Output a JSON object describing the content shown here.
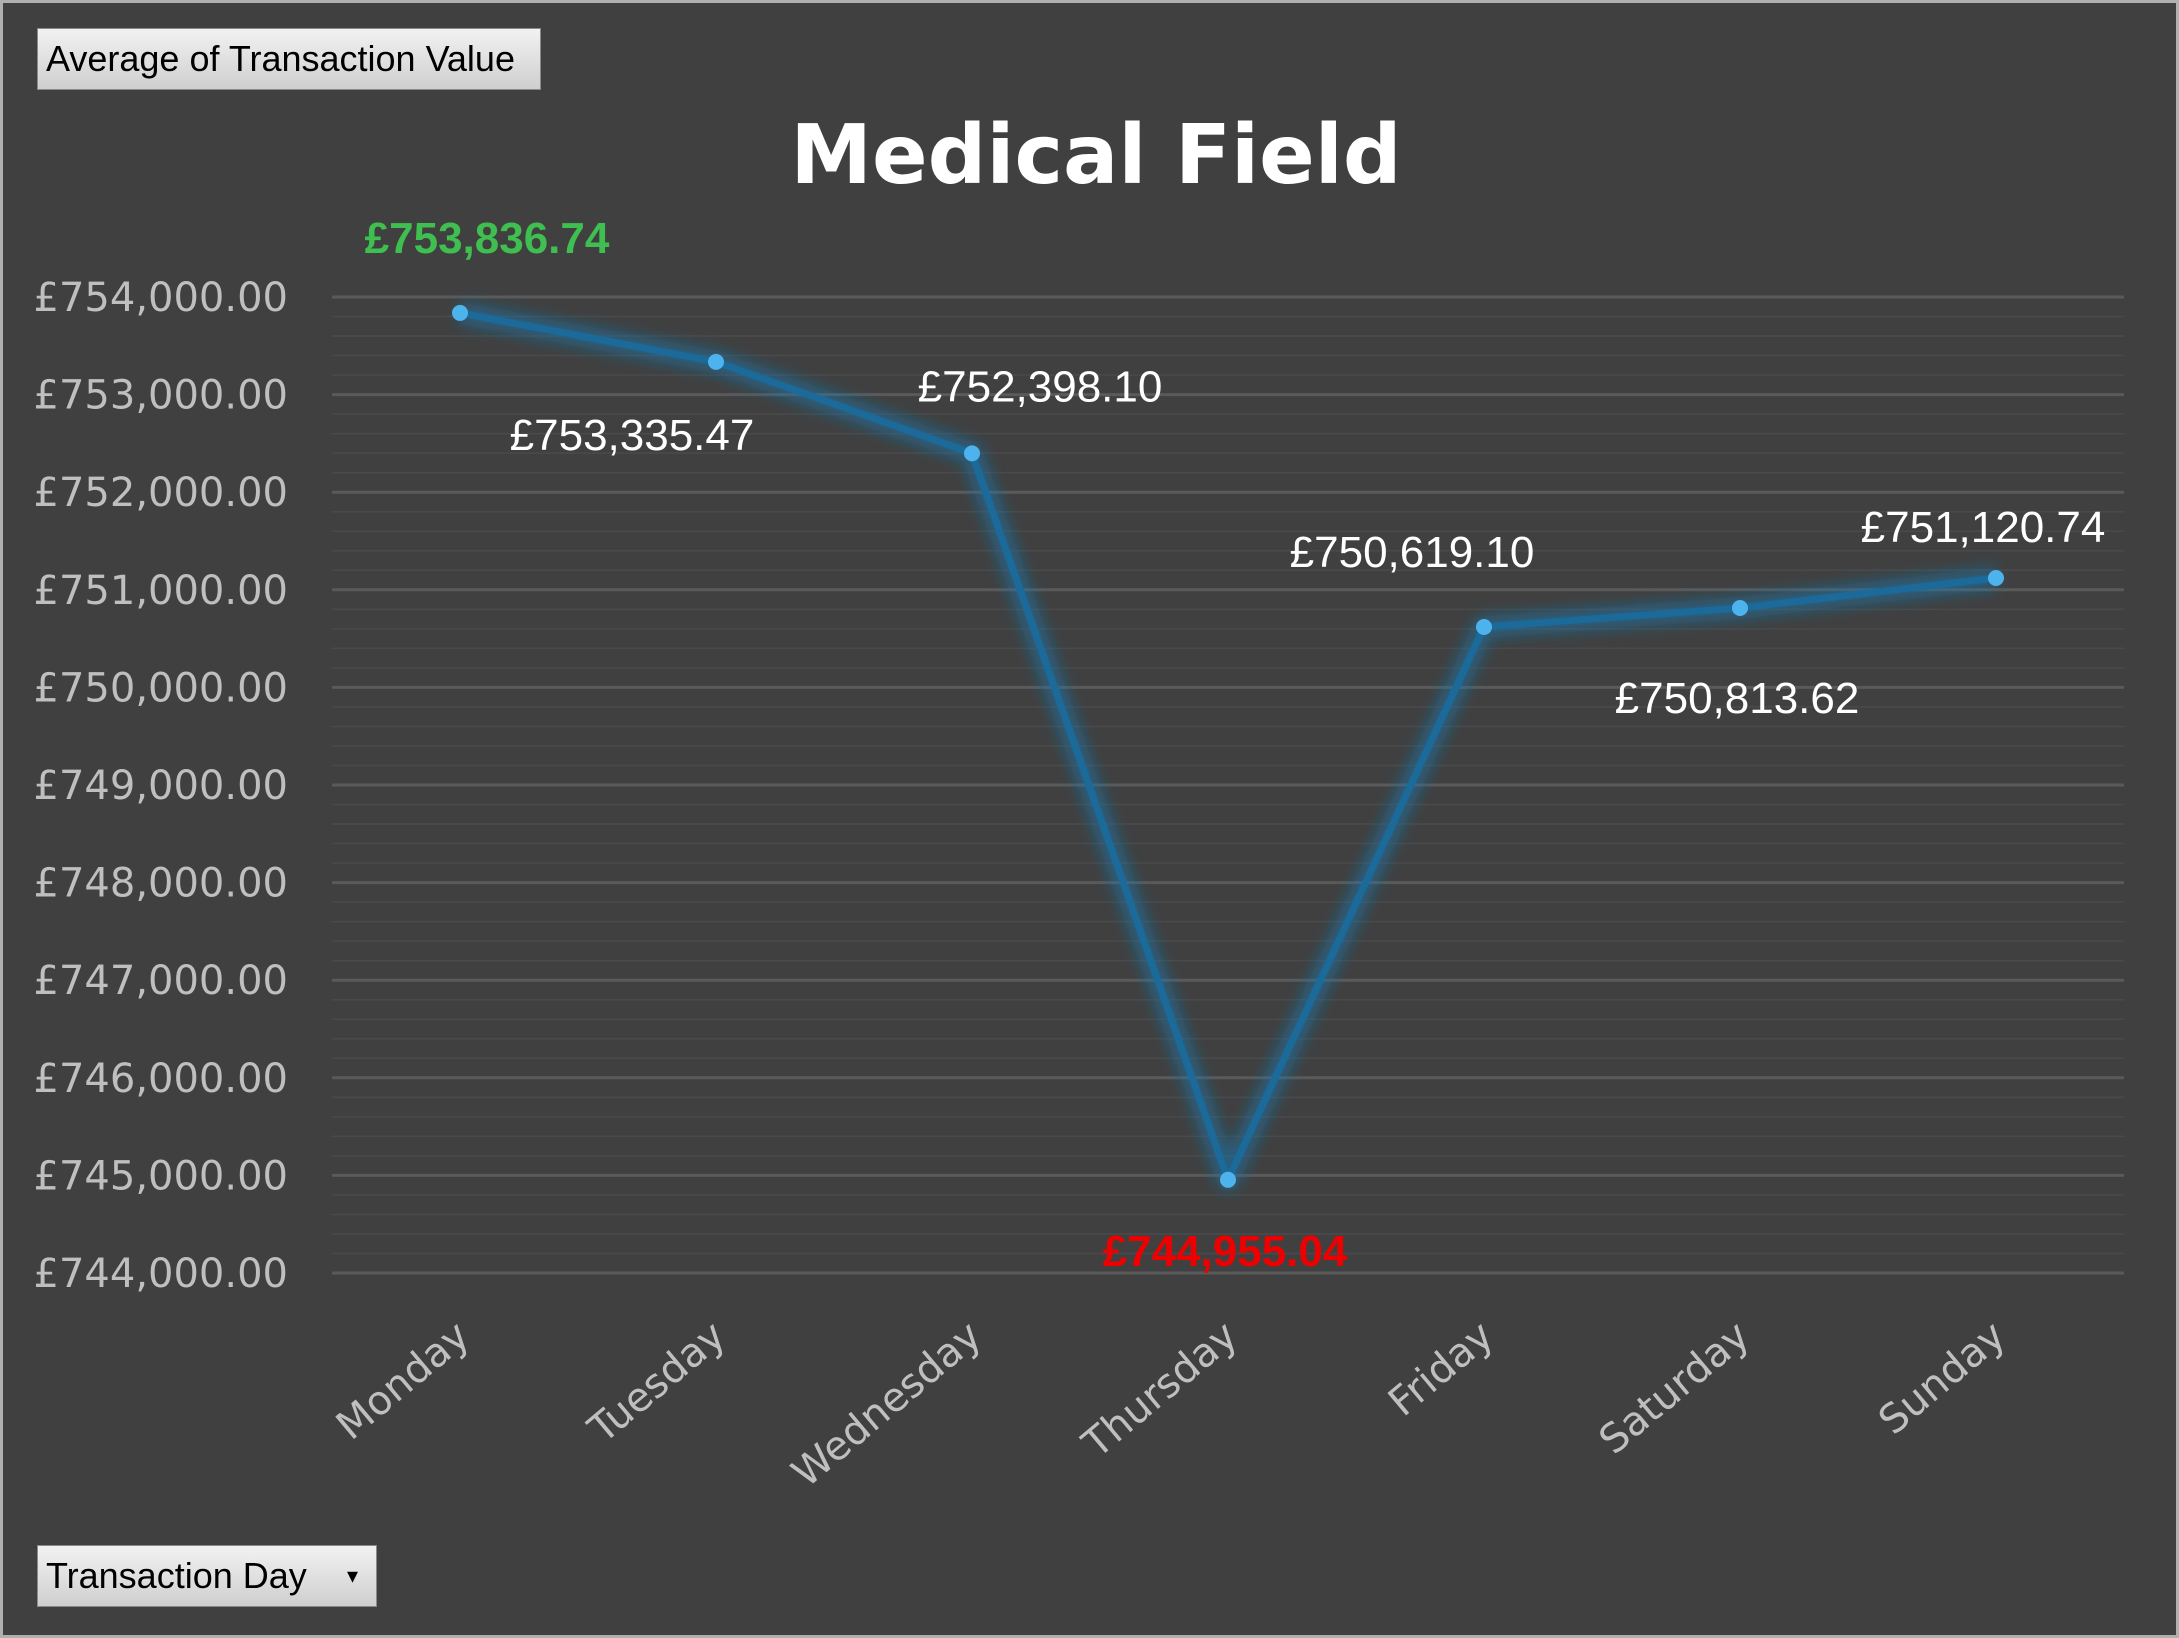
{
  "field_buttons": {
    "value_field": "Average  of Transaction Value",
    "axis_field": "Transaction  Day"
  },
  "colors": {
    "background": "#404040",
    "line": "#1b6a99",
    "marker": "#4db3ec",
    "label_default": "#ffffff",
    "label_max": "#3fbf4f",
    "label_min": "#ee0000",
    "gridline": "#5a5a5a"
  },
  "chart_data": {
    "type": "line",
    "title": "Medical Field",
    "xlabel": "",
    "ylabel": "",
    "categories": [
      "Monday",
      "Tuesday",
      "Wednesday",
      "Thursday",
      "Friday",
      "Saturday",
      "Sunday"
    ],
    "series": [
      {
        "values": [
          753836.74,
          753335.47,
          752398.1,
          744955.04,
          750619.1,
          750813.62,
          751120.74
        ]
      }
    ],
    "data_labels": [
      "£753,836.74",
      "£753,335.47",
      "£752,398.10",
      "£744,955.04",
      "£750,619.10",
      "£750,813.62",
      "£751,120.74"
    ],
    "highlight": {
      "max_index": 0,
      "min_index": 3
    },
    "ylim": [
      744000,
      754000
    ],
    "ytick_labels": [
      "£754,000.00",
      "£753,000.00",
      "£752,000.00",
      "£751,000.00",
      "£750,000.00",
      "£749,000.00",
      "£748,000.00",
      "£747,000.00",
      "£746,000.00",
      "£745,000.00",
      "£744,000.00"
    ],
    "grid": true,
    "legend": "none"
  }
}
